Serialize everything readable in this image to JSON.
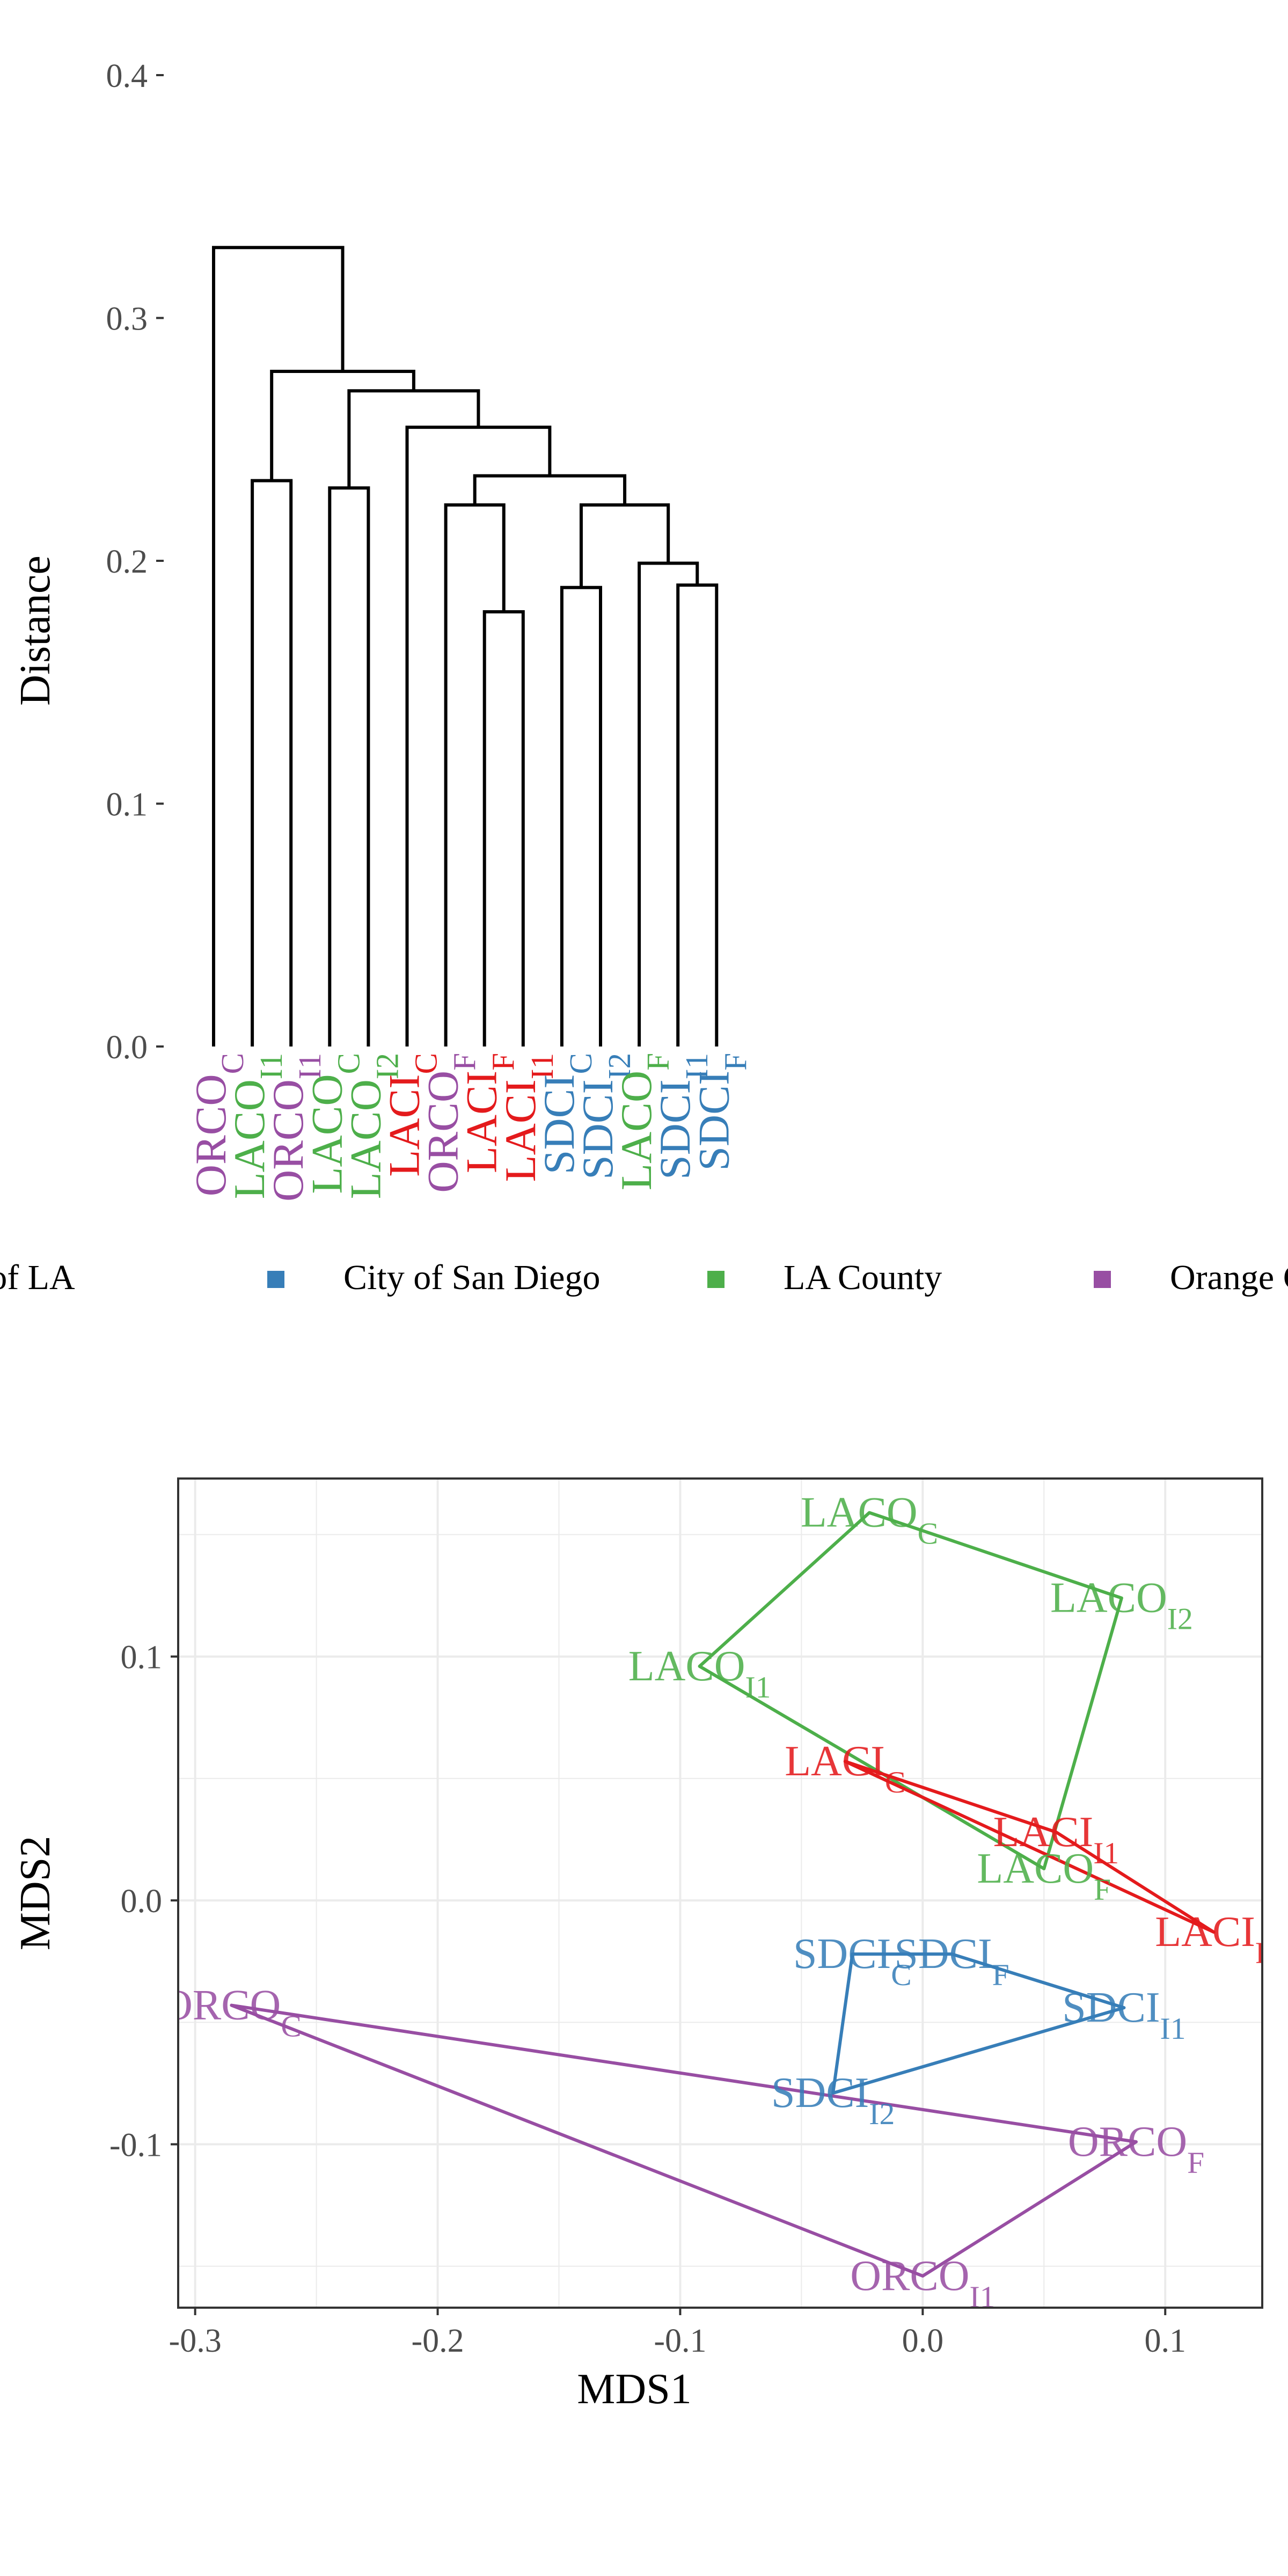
{
  "colors": {
    "City of LA": "#E41A1C",
    "City of San Diego": "#377EB8",
    "LA County": "#4DAF4A",
    "Orange County": "#984EA3"
  },
  "legend": {
    "position": "bottom",
    "entries": [
      {
        "label": "City of LA",
        "group": "City of LA"
      },
      {
        "label": "City of San Diego",
        "group": "City of San Diego"
      },
      {
        "label": "LA County",
        "group": "LA County"
      },
      {
        "label": "Orange County",
        "group": "Orange County"
      }
    ]
  },
  "chart_data": [
    {
      "type": "dendrogram",
      "ylabel": "Distance",
      "ylim": [
        0,
        0.4
      ],
      "yticks": [
        0.0,
        0.1,
        0.2,
        0.3,
        0.4
      ],
      "ytick_labels": [
        "0.0",
        "0.1",
        "0.2",
        "0.3",
        "0.4"
      ],
      "leaves": [
        {
          "base": "ORCO",
          "sub": "C",
          "group": "Orange County"
        },
        {
          "base": "LACO",
          "sub": "I1",
          "group": "LA County"
        },
        {
          "base": "ORCO",
          "sub": "I1",
          "group": "Orange County"
        },
        {
          "base": "LACO",
          "sub": "C",
          "group": "LA County"
        },
        {
          "base": "LACO",
          "sub": "I2",
          "group": "LA County"
        },
        {
          "base": "LACI",
          "sub": "C",
          "group": "City of LA"
        },
        {
          "base": "ORCO",
          "sub": "F",
          "group": "Orange County"
        },
        {
          "base": "LACI",
          "sub": "F",
          "group": "City of LA"
        },
        {
          "base": "LACI",
          "sub": "I1",
          "group": "City of LA"
        },
        {
          "base": "SDCI",
          "sub": "C",
          "group": "City of San Diego"
        },
        {
          "base": "SDCI",
          "sub": "I2",
          "group": "City of San Diego"
        },
        {
          "base": "LACO",
          "sub": "F",
          "group": "LA County"
        },
        {
          "base": "SDCI",
          "sub": "I1",
          "group": "City of San Diego"
        },
        {
          "base": "SDCI",
          "sub": "F",
          "group": "City of San Diego"
        }
      ],
      "merges": [
        {
          "a": "L8",
          "b": "L9",
          "height": 0.179
        },
        {
          "a": "L13",
          "b": "L14",
          "height": 0.19
        },
        {
          "a": "L12",
          "b": "M2",
          "height": 0.199
        },
        {
          "a": "L10",
          "b": "L11",
          "height": 0.189
        },
        {
          "a": "M4",
          "b": "M3",
          "height": 0.223
        },
        {
          "a": "L7",
          "b": "M1",
          "height": 0.223
        },
        {
          "a": "M6",
          "b": "M5",
          "height": 0.235
        },
        {
          "a": "L6",
          "b": "M7",
          "height": 0.255
        },
        {
          "a": "L4",
          "b": "L5",
          "height": 0.23
        },
        {
          "a": "M9",
          "b": "M8",
          "height": 0.27
        },
        {
          "a": "L2",
          "b": "L3",
          "height": 0.233
        },
        {
          "a": "M11",
          "b": "M10",
          "height": 0.278
        },
        {
          "a": "L1",
          "b": "M12",
          "height": 0.329
        }
      ]
    },
    {
      "type": "scatter",
      "xlabel": "MDS1",
      "ylabel": "MDS2",
      "xlim": [
        -0.307,
        0.14
      ],
      "ylim": [
        -0.167,
        0.173
      ],
      "grid": true,
      "xticks": [
        -0.3,
        -0.2,
        -0.1,
        0.0,
        0.1
      ],
      "xtick_labels": [
        "-0.3",
        "-0.2",
        "-0.1",
        "0.0",
        "0.1"
      ],
      "yticks": [
        -0.1,
        0.0,
        0.1
      ],
      "ytick_labels": [
        "-0.1",
        "0.0",
        "0.1"
      ],
      "points": [
        {
          "id": "LACO_C",
          "base": "LACO",
          "sub": "C",
          "group": "LA County",
          "x": -0.022,
          "y": 0.159
        },
        {
          "id": "LACO_I2",
          "base": "LACO",
          "sub": "I2",
          "group": "LA County",
          "x": 0.082,
          "y": 0.124
        },
        {
          "id": "LACO_I1",
          "base": "LACO",
          "sub": "I1",
          "group": "LA County",
          "x": -0.092,
          "y": 0.096
        },
        {
          "id": "LACO_F",
          "base": "LACO",
          "sub": "F",
          "group": "LA County",
          "x": 0.05,
          "y": 0.013
        },
        {
          "id": "LACI_C",
          "base": "LACI",
          "sub": "C",
          "group": "City of LA",
          "x": -0.032,
          "y": 0.057
        },
        {
          "id": "LACI_I1",
          "base": "LACI",
          "sub": "I1",
          "group": "City of LA",
          "x": 0.055,
          "y": 0.028
        },
        {
          "id": "LACI_F",
          "base": "LACI",
          "sub": "F",
          "group": "City of LA",
          "x": 0.12,
          "y": -0.013
        },
        {
          "id": "SDCI_C",
          "base": "SDCI",
          "sub": "C",
          "group": "City of San Diego",
          "x": -0.029,
          "y": -0.022
        },
        {
          "id": "SDCI_F",
          "base": "SDCI",
          "sub": "F",
          "group": "City of San Diego",
          "x": 0.012,
          "y": -0.022
        },
        {
          "id": "SDCI_I1",
          "base": "SDCI",
          "sub": "I1",
          "group": "City of San Diego",
          "x": 0.083,
          "y": -0.044
        },
        {
          "id": "SDCI_I2",
          "base": "SDCI",
          "sub": "I2",
          "group": "City of San Diego",
          "x": -0.037,
          "y": -0.079
        },
        {
          "id": "ORCO_C",
          "base": "ORCO",
          "sub": "C",
          "group": "Orange County",
          "x": -0.285,
          "y": -0.043
        },
        {
          "id": "ORCO_F",
          "base": "ORCO",
          "sub": "F",
          "group": "Orange County",
          "x": 0.088,
          "y": -0.099
        },
        {
          "id": "ORCO_I1",
          "base": "ORCO",
          "sub": "I1",
          "group": "Orange County",
          "x": 0.0,
          "y": -0.154
        }
      ],
      "hulls": [
        {
          "group": "LA County",
          "points": [
            "LACO_C",
            "LACO_I2",
            "LACO_F",
            "LACO_I1"
          ]
        },
        {
          "group": "City of LA",
          "points": [
            "LACI_C",
            "LACI_I1",
            "LACI_F"
          ]
        },
        {
          "group": "City of San Diego",
          "points": [
            "SDCI_C",
            "SDCI_F",
            "SDCI_I1",
            "SDCI_I2"
          ]
        },
        {
          "group": "Orange County",
          "points": [
            "ORCO_C",
            "ORCO_F",
            "ORCO_I1"
          ]
        }
      ]
    }
  ]
}
